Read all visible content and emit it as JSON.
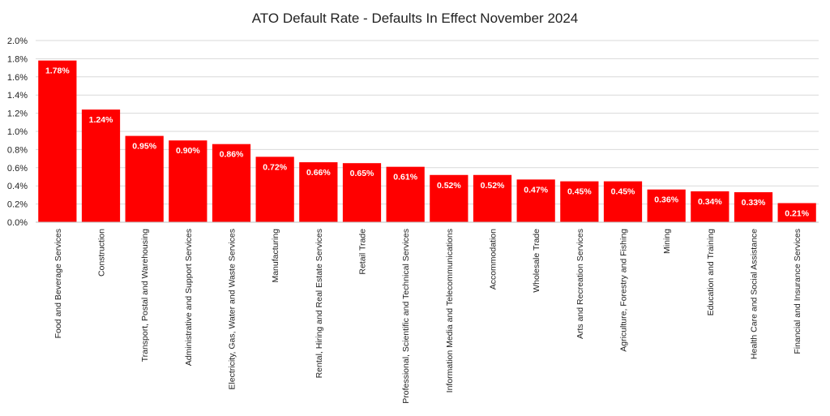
{
  "chart_data": {
    "type": "bar",
    "title": "ATO Default Rate - Defaults In Effect November 2024",
    "xlabel": "",
    "ylabel": "",
    "ylim": [
      0,
      2.0
    ],
    "y_ticks": [
      "0.0%",
      "0.2%",
      "0.4%",
      "0.6%",
      "0.8%",
      "1.0%",
      "1.2%",
      "1.4%",
      "1.6%",
      "1.8%",
      "2.0%"
    ],
    "grid": true,
    "bar_color": "#ff0000",
    "categories": [
      "Food and Beverage Services",
      "Construction",
      "Transport, Postal and Warehousing",
      "Administrative and Support Services",
      "Electricity, Gas, Water and Waste Services",
      "Manufacturing",
      "Rental, Hiring and Real Estate Services",
      "Retail Trade",
      "Professional, Scientific and Technical Services",
      "Information Media and Telecommunications",
      "Accommodation",
      "Wholesale Trade",
      "Arts and Recreation Services",
      "Agriculture, Forestry and Fishing",
      "Mining",
      "Education and Training",
      "Health Care and Social Assistance",
      "Financial and Insurance Services"
    ],
    "values": [
      1.78,
      1.24,
      0.95,
      0.9,
      0.86,
      0.72,
      0.66,
      0.65,
      0.61,
      0.52,
      0.52,
      0.47,
      0.45,
      0.45,
      0.36,
      0.34,
      0.33,
      0.21
    ],
    "value_labels": [
      "1.78%",
      "1.24%",
      "0.95%",
      "0.90%",
      "0.86%",
      "0.72%",
      "0.66%",
      "0.65%",
      "0.61%",
      "0.52%",
      "0.52%",
      "0.47%",
      "0.45%",
      "0.45%",
      "0.36%",
      "0.34%",
      "0.33%",
      "0.21%"
    ]
  }
}
